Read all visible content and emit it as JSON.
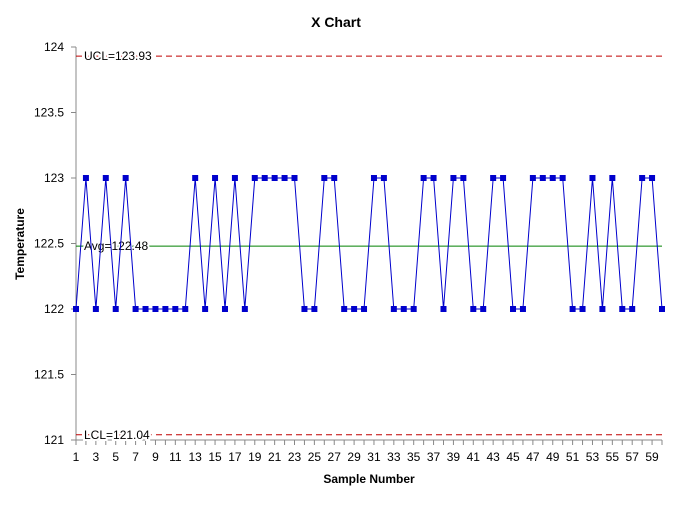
{
  "chart_data": {
    "type": "line",
    "title": "X Chart",
    "xlabel": "Sample Number",
    "ylabel": "Temperature",
    "xlim": [
      1,
      60
    ],
    "ylim": [
      121,
      124
    ],
    "grid": false,
    "legend": "none",
    "y_ticks": [
      "124",
      "123.5",
      "123",
      "122.5",
      "122",
      "121.5",
      "121"
    ],
    "x_ticks": [
      "1",
      "3",
      "5",
      "7",
      "9",
      "11",
      "13",
      "15",
      "17",
      "19",
      "21",
      "23",
      "25",
      "27",
      "29",
      "31",
      "33",
      "35",
      "37",
      "39",
      "41",
      "43",
      "45",
      "47",
      "49",
      "51",
      "53",
      "55",
      "57",
      "59"
    ],
    "reference_lines": [
      {
        "label": "UCL=123.93",
        "value": 123.93,
        "style": "dashed",
        "color": "#c00000"
      },
      {
        "label": "Avg=122.48",
        "value": 122.48,
        "style": "solid",
        "color": "#008000"
      },
      {
        "label": "LCL=121.04",
        "value": 121.04,
        "style": "dashed",
        "color": "#c00000"
      }
    ],
    "series": [
      {
        "color": "#0000cc",
        "x": [
          1,
          2,
          3,
          4,
          5,
          6,
          7,
          8,
          9,
          10,
          11,
          12,
          13,
          14,
          15,
          16,
          17,
          18,
          19,
          20,
          21,
          22,
          23,
          24,
          25,
          26,
          27,
          28,
          29,
          30,
          31,
          32,
          33,
          34,
          35,
          36,
          37,
          38,
          39,
          40,
          41,
          42,
          43,
          44,
          45,
          46,
          47,
          48,
          49,
          50,
          51,
          52,
          53,
          54,
          55,
          56,
          57,
          58,
          59,
          60
        ],
        "values": [
          122,
          123,
          122,
          123,
          122,
          123,
          122,
          122,
          122,
          122,
          122,
          122,
          123,
          122,
          123,
          122,
          123,
          122,
          123,
          123,
          123,
          123,
          123,
          122,
          122,
          123,
          123,
          122,
          122,
          122,
          123,
          123,
          122,
          122,
          122,
          123,
          123,
          122,
          123,
          123,
          122,
          122,
          123,
          123,
          122,
          122,
          123,
          123,
          123,
          123,
          122,
          122,
          123,
          122,
          123,
          122,
          122,
          123,
          123,
          122
        ]
      }
    ]
  }
}
